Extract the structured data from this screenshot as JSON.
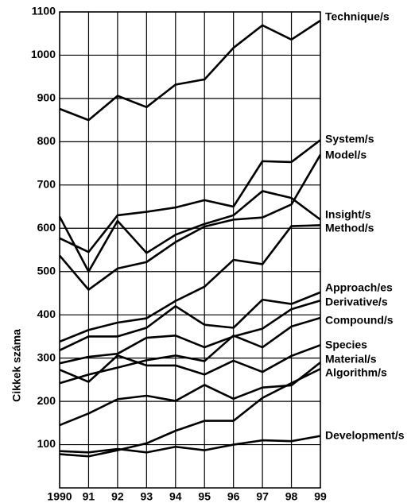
{
  "chart_data": {
    "type": "line",
    "y_label": "Cikkek száma",
    "categories": [
      "1990",
      "91",
      "92",
      "93",
      "94",
      "95",
      "96",
      "97",
      "98",
      "99"
    ],
    "ylim": [
      0,
      1100
    ],
    "yticks": [
      100,
      200,
      300,
      400,
      500,
      600,
      700,
      800,
      900,
      1000,
      1100
    ],
    "grid": true,
    "series": [
      {
        "name": "Technique/s",
        "color": "#000000",
        "values": [
          876,
          850,
          906,
          880,
          932,
          944,
          1017,
          1069,
          1036,
          1080
        ]
      },
      {
        "name": "System/s",
        "color": "#000000",
        "values": [
          577,
          545,
          630,
          638,
          648,
          665,
          650,
          755,
          753,
          804
        ]
      },
      {
        "name": "Model/s",
        "color": "#000000",
        "values": [
          537,
          458,
          507,
          522,
          568,
          604,
          620,
          625,
          655,
          770
        ]
      },
      {
        "name": "Insight/s",
        "color": "#000000",
        "values": [
          627,
          500,
          617,
          543,
          585,
          610,
          630,
          686,
          670,
          620
        ]
      },
      {
        "name": "Method/s",
        "color": "#000000",
        "values": [
          338,
          365,
          382,
          392,
          432,
          465,
          527,
          517,
          605,
          607
        ]
      },
      {
        "name": "Approach/es",
        "color": "#000000",
        "values": [
          318,
          350,
          350,
          370,
          420,
          377,
          370,
          435,
          425,
          452
        ]
      },
      {
        "name": "Derivative/s",
        "color": "#000000",
        "values": [
          288,
          303,
          310,
          347,
          352,
          325,
          350,
          368,
          413,
          433
        ]
      },
      {
        "name": "Compound/s",
        "color": "#000000",
        "values": [
          242,
          262,
          278,
          295,
          306,
          293,
          352,
          325,
          373,
          393
        ]
      },
      {
        "name": "Species",
        "color": "#000000",
        "values": [
          273,
          245,
          306,
          283,
          283,
          262,
          294,
          268,
          305,
          330
        ]
      },
      {
        "name": "Material/s",
        "color": "#000000",
        "values": [
          145,
          172,
          205,
          213,
          201,
          238,
          206,
          232,
          237,
          290
        ]
      },
      {
        "name": "Algorithm/s",
        "color": "#000000",
        "values": [
          78,
          73,
          87,
          103,
          132,
          155,
          155,
          208,
          242,
          275
        ]
      },
      {
        "name": "Development/s",
        "color": "#000000",
        "values": [
          85,
          82,
          90,
          82,
          95,
          87,
          100,
          110,
          108,
          120
        ]
      }
    ]
  }
}
